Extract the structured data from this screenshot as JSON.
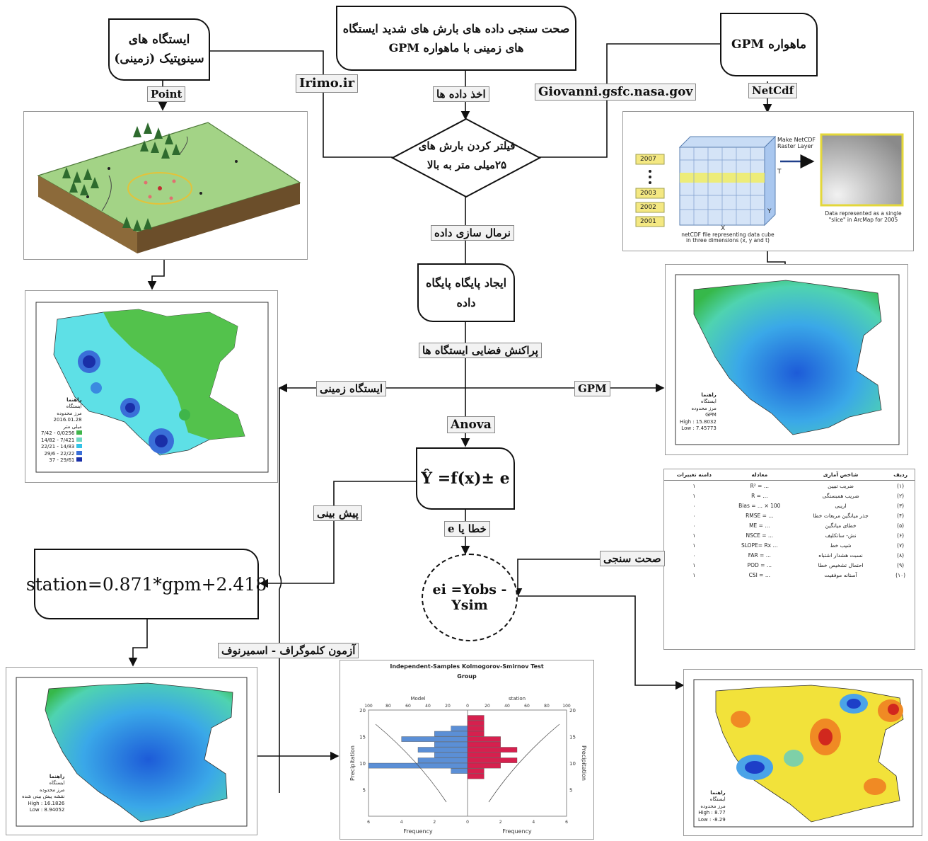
{
  "nodes": {
    "title": {
      "line1": "صحت سنجی داده های بارش های شدید ایستگاه",
      "line2": "های زمینی با ماهواره GPM"
    },
    "stations": {
      "line1": "ایستگاه های",
      "line2": "سینوپتیک (زمینی)"
    },
    "satellite": "ماهواره GPM",
    "filter": {
      "line1": "فیلتر کردن بارش های",
      "line2": "۲۵میلی متر به بالا"
    },
    "database": {
      "line1": "ایجاد پایگاه پایگاه",
      "line2": "داده"
    },
    "model": "Ŷ =f(x)± e",
    "error": "ei =Yobs - Ysim",
    "regression": "station=0.871*gpm+2.418"
  },
  "labels": {
    "point": "Point",
    "irimo": "Irimo.ir",
    "data_collection": "اخذ داده ها",
    "giovanni": "Giovanni.gsfc.nasa.gov",
    "netcdf": "NetCdf",
    "normalize": "نرمال سازی داده",
    "spatial": "پراکنش فضایی ایستگاه ها",
    "ground_station": "ایستگاه زمینی",
    "gpm": "GPM",
    "anova": "Anova",
    "prediction": "پیش بینی",
    "error_or_e": "خطا یا e",
    "validation": "صحت سنجی",
    "ks_test": "آزمون کلموگراف - اسمیرنوف"
  },
  "netcdf_panel": {
    "years": [
      "2007",
      "2003",
      "2002",
      "2001"
    ],
    "make_layer": "Make NetCDF Raster Layer",
    "axis_t": "T",
    "axis_y": "Y",
    "axis_x": "X",
    "caption_left": "netCDF file representing data cube in three dimensions (x, y and t)",
    "caption_right": "Data represented as a single \"slice\" in ArcMap for 2005"
  },
  "maps": {
    "ground": {
      "legend_title": "راهنما",
      "station": "ایستگاه",
      "boundary": "مرز محدوده",
      "date": "2016.01.28",
      "field": "میلی متر",
      "classes": [
        "0/0256 - 7/42",
        "7/421 - 14/82",
        "14/83 - 22/21",
        "22/22 - 29/6",
        "29/61 - 37"
      ],
      "class_colors": [
        "#3fb54a",
        "#6ed6c2",
        "#33c3e8",
        "#3a6fd8",
        "#1a2fa8"
      ]
    },
    "gpm": {
      "legend_title": "راهنما",
      "station": "ایستگاه",
      "boundary": "مرز محدوده",
      "field": "GPM",
      "high": "High : 15.8032",
      "low": "Low : 7.45773"
    },
    "regression": {
      "legend_title": "راهنما",
      "station": "ایستگاه",
      "boundary": "مرز محدوده",
      "field": "نقشه پیش بینی شده",
      "high": "High : 16.1826",
      "low": "Low : 8.94052"
    },
    "error": {
      "legend_title": "راهنما",
      "station": "ایستگاه",
      "boundary": "مرز محدوده",
      "high": "High : 8.77",
      "low": "Low : -8.29"
    }
  },
  "metrics_table": {
    "headers": [
      "ردیف",
      "شاخص آماری",
      "معادله",
      "دامنه تغییرات"
    ],
    "rows": [
      {
        "n": "(۱)",
        "name": "ضریب تبیین",
        "formula": "R² = ...",
        "range": "۱"
      },
      {
        "n": "(۲)",
        "name": "ضریب همبستگی",
        "formula": "R = ...",
        "range": "۱"
      },
      {
        "n": "(۳)",
        "name": "اریبی",
        "formula": "Bias = ... × 100",
        "range": "۰"
      },
      {
        "n": "(۴)",
        "name": "جذر میانگین مربعات خطا",
        "formula": "RMSE = ...",
        "range": "۰"
      },
      {
        "n": "(۵)",
        "name": "خطای میانگین",
        "formula": "ME = ...",
        "range": "۰"
      },
      {
        "n": "(۶)",
        "name": "نش- ساتکلیف",
        "formula": "NSCE = ...",
        "range": "۱"
      },
      {
        "n": "(۷)",
        "name": "شیب خط",
        "formula": "SLOPE= Rx ...",
        "range": "۱"
      },
      {
        "n": "(۸)",
        "name": "نسبت هشدار اشتباه",
        "formula": "FAR = ...",
        "range": "۰"
      },
      {
        "n": "(۹)",
        "name": "احتمال تشخیص خطا",
        "formula": "POD = ...",
        "range": "۱"
      },
      {
        "n": "(۱۰)",
        "name": "آستانه موفقیت",
        "formula": "CSI = ...",
        "range": "۱"
      }
    ]
  },
  "chart_data": {
    "type": "bar",
    "title": "Independent-Samples Kolmogorov-Smirnov Test",
    "subtitle": "Group",
    "left_group": "Model",
    "right_group": "station",
    "xlabel": "Frequency",
    "ylabel": "Precipitation",
    "y_ticks": [
      5,
      10,
      15,
      20
    ],
    "x_ticks": [
      100,
      80,
      60,
      40,
      20,
      0,
      20,
      40,
      60,
      80,
      100
    ],
    "bottom_ticks": [
      6,
      4,
      2,
      0,
      2,
      4,
      6
    ],
    "left_color": "#5b8fd6",
    "right_color": "#d6204e",
    "bins_y": [
      7.5,
      8.5,
      9.5,
      10.5,
      11.5,
      12.5,
      13.5,
      14.5,
      15.5,
      16.5,
      17.5,
      18.5
    ],
    "model_freq": [
      0,
      1,
      6,
      3,
      2,
      3,
      2,
      4,
      2,
      1,
      0,
      0
    ],
    "station_freq": [
      1,
      1,
      2,
      3,
      2,
      3,
      2,
      2,
      1,
      1,
      1,
      1
    ]
  }
}
